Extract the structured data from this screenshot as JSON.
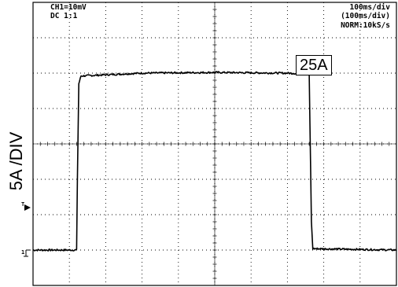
{
  "scope": {
    "channel_label": "CH1=10mV",
    "coupling_label": "DC  1:1",
    "timebase_label": "100ms/div",
    "timebase_label_2": "(100ms/div)",
    "sampling_label": "NORM:10kS/s",
    "vertical_scale_label": "5A /DIV",
    "amplitude_label": "25A",
    "trigger_marker": "T",
    "ground_marker": "1"
  },
  "chart_data": {
    "type": "line",
    "title": "",
    "xlabel": "",
    "ylabel": "5A /DIV",
    "xlim": [
      0,
      1000
    ],
    "ylim": [
      -5,
      35
    ],
    "grid": true,
    "x_unit": "ms",
    "y_unit": "A",
    "series": [
      {
        "x": [
          0,
          120,
          122,
          126,
          132,
          300,
          500,
          700,
          760,
          762,
          766,
          770,
          1000
        ],
        "y": [
          0,
          0,
          10,
          23.5,
          24.6,
          25.0,
          25.1,
          25.0,
          24.9,
          18,
          4,
          0.2,
          0
        ]
      }
    ]
  }
}
